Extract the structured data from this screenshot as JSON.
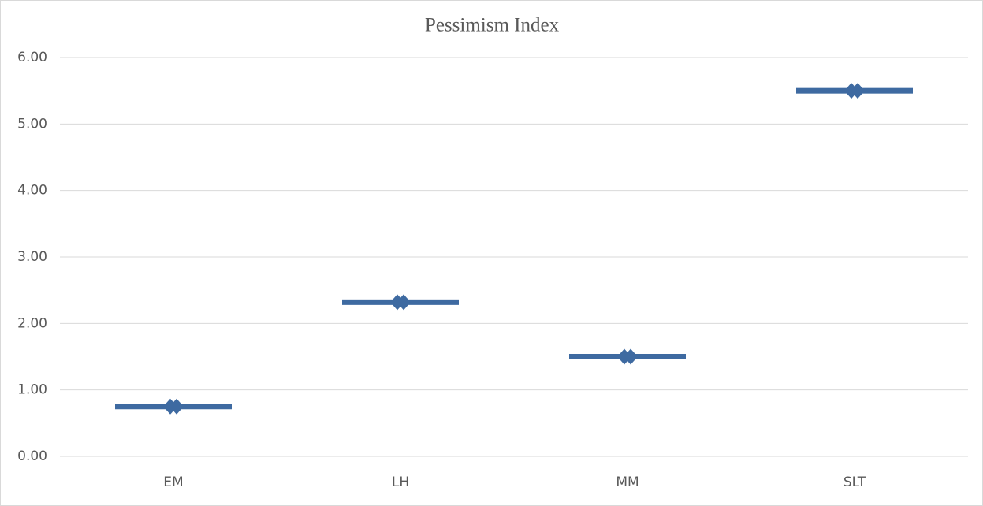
{
  "chart_data": {
    "type": "dash",
    "title": "Pessimism Index",
    "categories": [
      "EM",
      "LH",
      "MM",
      "SLT"
    ],
    "values": [
      0.75,
      2.32,
      1.5,
      5.5
    ],
    "color": "#3e6aa1",
    "ylim": [
      0,
      6
    ],
    "yticks": [
      {
        "value": 0,
        "label": "0.00"
      },
      {
        "value": 1,
        "label": "1.00"
      },
      {
        "value": 2,
        "label": "2.00"
      },
      {
        "value": 3,
        "label": "3.00"
      },
      {
        "value": 4,
        "label": "4.00"
      },
      {
        "value": 5,
        "label": "5.00"
      },
      {
        "value": 6,
        "label": "6.00"
      }
    ],
    "grid": true
  }
}
